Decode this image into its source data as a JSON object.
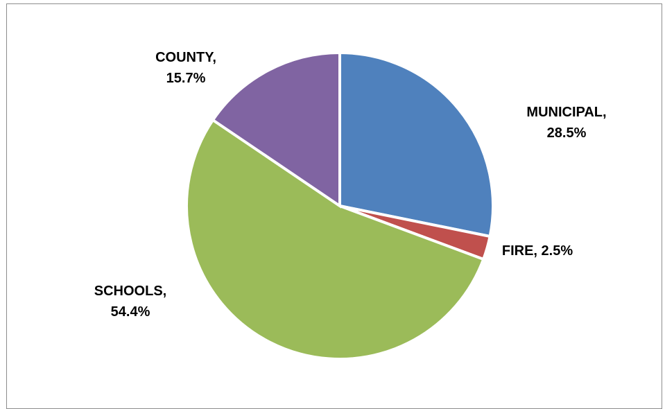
{
  "chart_data": {
    "type": "pie",
    "title": "",
    "categories": [
      "MUNICIPAL",
      "FIRE",
      "SCHOOLS",
      "COUNTY"
    ],
    "values": [
      28.5,
      2.5,
      54.4,
      15.7
    ],
    "display_labels": [
      [
        "MUNICIPAL,",
        "28.5%"
      ],
      [
        "FIRE, 2.5%"
      ],
      [
        "SCHOOLS,",
        "54.4%"
      ],
      [
        "COUNTY,",
        "15.7%"
      ]
    ],
    "colors": [
      "#4f81bd",
      "#c0504d",
      "#9bbb59",
      "#8064a2"
    ],
    "legend": "none"
  }
}
